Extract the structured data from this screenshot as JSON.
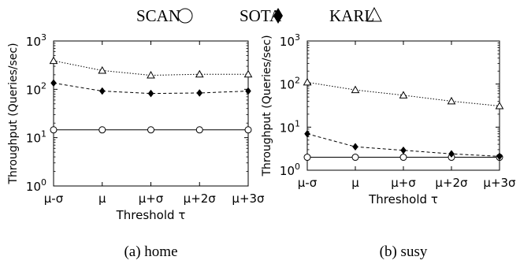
{
  "legend": {
    "items": [
      {
        "label": "SCAN",
        "marker": "circle-open"
      },
      {
        "label": "SOTA",
        "marker": "diamond-filled"
      },
      {
        "label": "KARL",
        "marker": "triangle-open"
      }
    ]
  },
  "chart_data": [
    {
      "type": "line",
      "caption": "(a) home",
      "xlabel": "Threshold τ",
      "ylabel": "Throughput (Queries/sec)",
      "yscale": "log",
      "ylim": [
        1,
        1000
      ],
      "ytick_labels": [
        {
          "base": "10",
          "exp": "0"
        },
        {
          "base": "10",
          "exp": "1"
        },
        {
          "base": "10",
          "exp": "2"
        },
        {
          "base": "10",
          "exp": "3"
        }
      ],
      "categories": [
        "μ-σ",
        "μ",
        "μ+σ",
        "μ+2σ",
        "μ+3σ"
      ],
      "series": [
        {
          "name": "SCAN",
          "marker": "circle-open",
          "dash": "solid",
          "values": [
            14.5,
            14.5,
            14.5,
            14.5,
            14.5
          ]
        },
        {
          "name": "SOTA",
          "marker": "diamond-filled",
          "dash": "dashed",
          "values": [
            135,
            92,
            82,
            84,
            92
          ]
        },
        {
          "name": "KARL",
          "marker": "triangle-open",
          "dash": "dotted",
          "values": [
            390,
            245,
            195,
            205,
            205
          ]
        }
      ]
    },
    {
      "type": "line",
      "caption": "(b) susy",
      "xlabel": "Threshold τ",
      "ylabel": "Throughput (Queries/sec)",
      "yscale": "log",
      "ylim": [
        1,
        1000
      ],
      "ytick_labels": [
        {
          "base": "10",
          "exp": "0"
        },
        {
          "base": "10",
          "exp": "1"
        },
        {
          "base": "10",
          "exp": "2"
        },
        {
          "base": "10",
          "exp": "3"
        }
      ],
      "categories": [
        "μ-σ",
        "μ",
        "μ+σ",
        "μ+2σ",
        "μ+3σ"
      ],
      "series": [
        {
          "name": "SCAN",
          "marker": "circle-open",
          "dash": "solid",
          "values": [
            2.0,
            2.0,
            2.0,
            2.0,
            2.0
          ]
        },
        {
          "name": "SOTA",
          "marker": "diamond-filled",
          "dash": "dashed",
          "values": [
            7,
            3.5,
            2.9,
            2.4,
            2.1
          ]
        },
        {
          "name": "KARL",
          "marker": "triangle-open",
          "dash": "dotted",
          "values": [
            110,
            73,
            55,
            40,
            31
          ]
        }
      ]
    }
  ]
}
